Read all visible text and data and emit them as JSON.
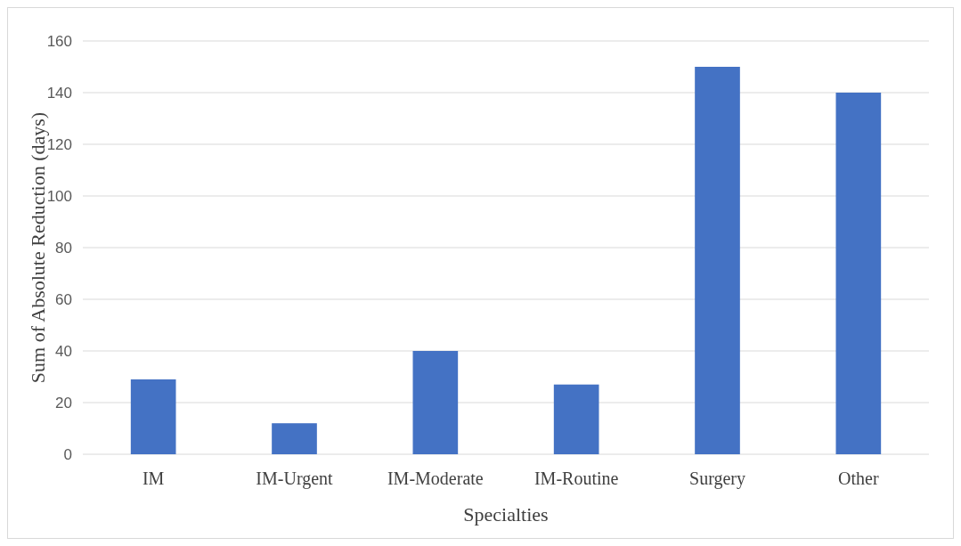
{
  "chart_data": {
    "type": "bar",
    "xlabel": "Specialties",
    "ylabel": "Sum of Absolute Reduction (days)",
    "categories": [
      "IM",
      "IM-Urgent",
      "IM-Moderate",
      "IM-Routine",
      "Surgery",
      "Other"
    ],
    "values": [
      29,
      12,
      40,
      27,
      150,
      140
    ],
    "color": "#4472c4",
    "ylim": [
      0,
      160
    ],
    "yticks": [
      0,
      20,
      40,
      60,
      80,
      100,
      120,
      140,
      160
    ],
    "grid": "y"
  }
}
